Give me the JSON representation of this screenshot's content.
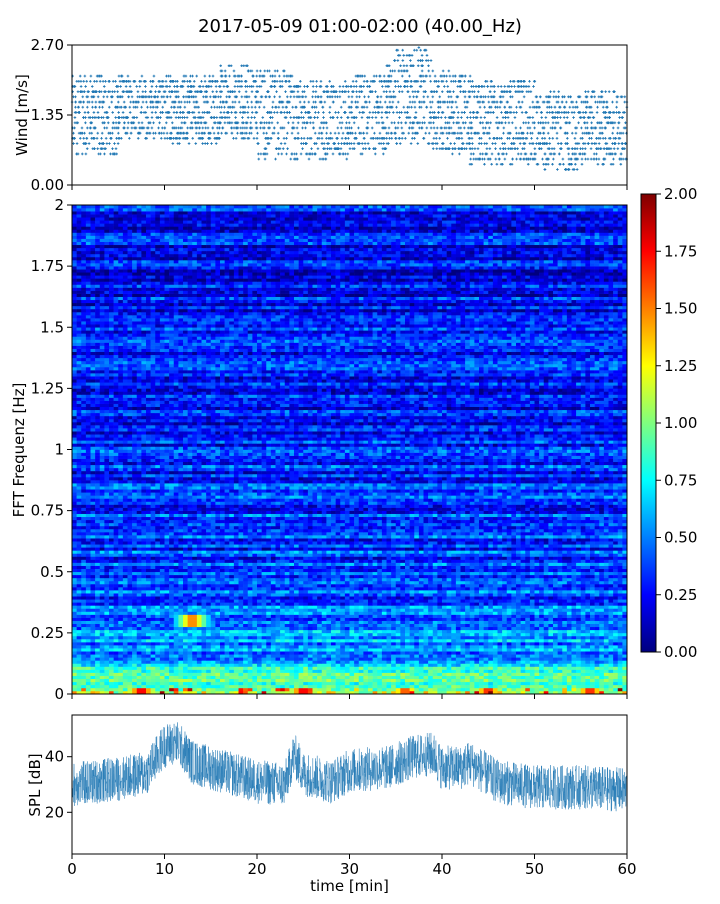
{
  "title": "2017-05-09 01:00-02:00 (40.00_Hz)",
  "colors": {
    "series": "#1f77b4",
    "colormap": [
      "#00007f",
      "#0000ff",
      "#007fff",
      "#00ffff",
      "#7fff7f",
      "#ffff00",
      "#ff7f00",
      "#ff0000",
      "#7f0000"
    ]
  },
  "chart_data": [
    {
      "id": "wind",
      "type": "scatter",
      "ylabel": "Wind [m/s]",
      "ytick_labels": [
        "0.00",
        "1.35",
        "2.70"
      ],
      "yticks": [
        0,
        1.35,
        2.7
      ],
      "ylim": [
        0,
        2.7
      ],
      "xlim": [
        0,
        60
      ],
      "quantization_step": 0.1,
      "segments": [
        {
          "x": [
            0,
            5
          ],
          "range": [
            0.6,
            2.1
          ]
        },
        {
          "x": [
            5,
            10
          ],
          "range": [
            0.9,
            2.1
          ]
        },
        {
          "x": [
            10,
            16
          ],
          "range": [
            0.8,
            2.1
          ]
        },
        {
          "x": [
            16,
            20
          ],
          "range": [
            0.9,
            2.3
          ]
        },
        {
          "x": [
            20,
            24
          ],
          "range": [
            0.5,
            2.2
          ]
        },
        {
          "x": [
            24,
            30
          ],
          "range": [
            0.5,
            2.0
          ]
        },
        {
          "x": [
            30,
            34
          ],
          "range": [
            0.6,
            2.1
          ]
        },
        {
          "x": [
            34,
            39
          ],
          "range": [
            0.8,
            2.6
          ]
        },
        {
          "x": [
            39,
            43
          ],
          "range": [
            0.6,
            2.2
          ]
        },
        {
          "x": [
            43,
            50
          ],
          "range": [
            0.4,
            2.0
          ]
        },
        {
          "x": [
            50,
            55
          ],
          "range": [
            0.3,
            1.8
          ]
        },
        {
          "x": [
            55,
            60
          ],
          "range": [
            0.4,
            1.8
          ]
        }
      ],
      "max_point": {
        "x": 37.5,
        "y": 2.65
      }
    },
    {
      "id": "spectrogram",
      "type": "heatmap",
      "ylabel": "FFT Frequenz [Hz]",
      "yticks": [
        0,
        0.25,
        0.5,
        0.75,
        1,
        1.25,
        1.5,
        1.75,
        2
      ],
      "ytick_labels": [
        "0",
        "0.25",
        "0.5",
        "0.75",
        "1",
        "1.25",
        "1.5",
        "1.75",
        "2"
      ],
      "ylim": [
        0,
        2
      ],
      "xlim": [
        0,
        60
      ],
      "colorbar": {
        "range": [
          0,
          2
        ],
        "ticks": [
          0,
          0.25,
          0.5,
          0.75,
          1.0,
          1.25,
          1.5,
          1.75,
          2.0
        ],
        "tick_labels": [
          "0.00",
          "0.25",
          "0.50",
          "0.75",
          "1.00",
          "1.25",
          "1.50",
          "1.75",
          "2.00"
        ]
      },
      "typical_value_by_frequency": [
        {
          "f": 0.0,
          "value": 1.1
        },
        {
          "f": 0.05,
          "value": 0.9
        },
        {
          "f": 0.15,
          "value": 0.6
        },
        {
          "f": 0.3,
          "value": 0.45
        },
        {
          "f": 0.6,
          "value": 0.35
        },
        {
          "f": 1.0,
          "value": 0.3
        },
        {
          "f": 2.0,
          "value": 0.25
        }
      ],
      "hotspots": [
        {
          "x": 7.5,
          "f": 0.01,
          "value": 1.9
        },
        {
          "x": 13,
          "f": 0.3,
          "value": 1.6
        },
        {
          "x": 25,
          "f": 0.01,
          "value": 1.9
        },
        {
          "x": 36,
          "f": 0.01,
          "value": 1.7
        },
        {
          "x": 45,
          "f": 0.01,
          "value": 1.8
        },
        {
          "x": 56,
          "f": 0.01,
          "value": 1.8
        }
      ]
    },
    {
      "id": "spl",
      "type": "line",
      "ylabel": "SPL [dB]",
      "yticks": [
        20,
        40
      ],
      "ytick_labels": [
        "20",
        "40"
      ],
      "ylim": [
        5,
        55
      ],
      "xlim": [
        0,
        60
      ],
      "xlabel": "time [min]",
      "xticks": [
        0,
        10,
        20,
        30,
        40,
        50,
        60
      ],
      "xtick_labels": [
        "0",
        "10",
        "20",
        "30",
        "40",
        "50",
        "60"
      ],
      "band_center": [
        {
          "x": 0,
          "y": 30
        },
        {
          "x": 5,
          "y": 32
        },
        {
          "x": 8,
          "y": 34
        },
        {
          "x": 10,
          "y": 44
        },
        {
          "x": 11.5,
          "y": 45
        },
        {
          "x": 13,
          "y": 38
        },
        {
          "x": 16,
          "y": 35
        },
        {
          "x": 20,
          "y": 31
        },
        {
          "x": 23,
          "y": 30
        },
        {
          "x": 24,
          "y": 41
        },
        {
          "x": 25,
          "y": 34
        },
        {
          "x": 28,
          "y": 31
        },
        {
          "x": 30,
          "y": 35
        },
        {
          "x": 34,
          "y": 36
        },
        {
          "x": 37,
          "y": 40
        },
        {
          "x": 39,
          "y": 41
        },
        {
          "x": 40,
          "y": 36
        },
        {
          "x": 42,
          "y": 36
        },
        {
          "x": 43,
          "y": 38
        },
        {
          "x": 46,
          "y": 31
        },
        {
          "x": 50,
          "y": 29
        },
        {
          "x": 55,
          "y": 29
        },
        {
          "x": 60,
          "y": 28
        }
      ],
      "band_halfwidth_db": 8
    }
  ]
}
